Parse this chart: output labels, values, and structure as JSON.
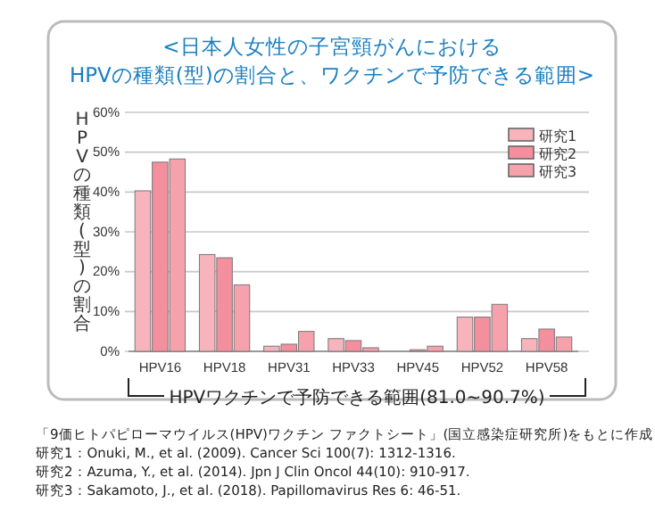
{
  "chart_data": {
    "type": "bar",
    "title": "<日本人女性の子宮頸がんにおける",
    "subtitle": "HPVの種類(型)の割合と、ワクチンで予防できる範囲>",
    "ylabel": "HPVの種類(型)の割合",
    "categories": [
      "HPV16",
      "HPV18",
      "HPV31",
      "HPV33",
      "HPV45",
      "HPV52",
      "HPV58"
    ],
    "series": [
      {
        "name": "研究1",
        "color": "#f7b4bd",
        "values": [
          40.3,
          24.3,
          1.3,
          3.2,
          0,
          8.6,
          3.2
        ]
      },
      {
        "name": "研究2",
        "color": "#f4909e",
        "values": [
          47.5,
          23.5,
          1.8,
          2.7,
          0.4,
          8.6,
          5.6
        ]
      },
      {
        "name": "研究3",
        "color": "#f6a2ad",
        "values": [
          48.3,
          16.7,
          5.0,
          0.9,
          1.3,
          11.8,
          3.6
        ]
      }
    ],
    "ylim": [
      0,
      60
    ],
    "yticks": [
      {
        "value": 0,
        "label": "0%"
      },
      {
        "value": 10,
        "label": "10%"
      },
      {
        "value": 20,
        "label": "20%"
      },
      {
        "value": 30,
        "label": "30%"
      },
      {
        "value": 40,
        "label": "40%"
      },
      {
        "value": 50,
        "label": "50%"
      },
      {
        "value": 60,
        "label": "60%"
      }
    ],
    "grid": "y",
    "legend": "top right",
    "annotations": [
      "HPVワクチンで予防できる範囲(81.0~90.7%)",
      "「9価ヒトパピローマウイルス(HPV)ワクチン ファクトシート」(国立感染症研究所)をもとに作成",
      "研究1：Onuki, M., et al. (2009). Cancer Sci 100(7): 1312-1316.",
      "研究2：Azuma, Y., et al. (2014).  Jpn J Clin Oncol 44(10): 910-917.",
      "研究3：Sakamoto, J., et al. (2018). Papillomavirus Res 6: 46-51."
    ]
  }
}
